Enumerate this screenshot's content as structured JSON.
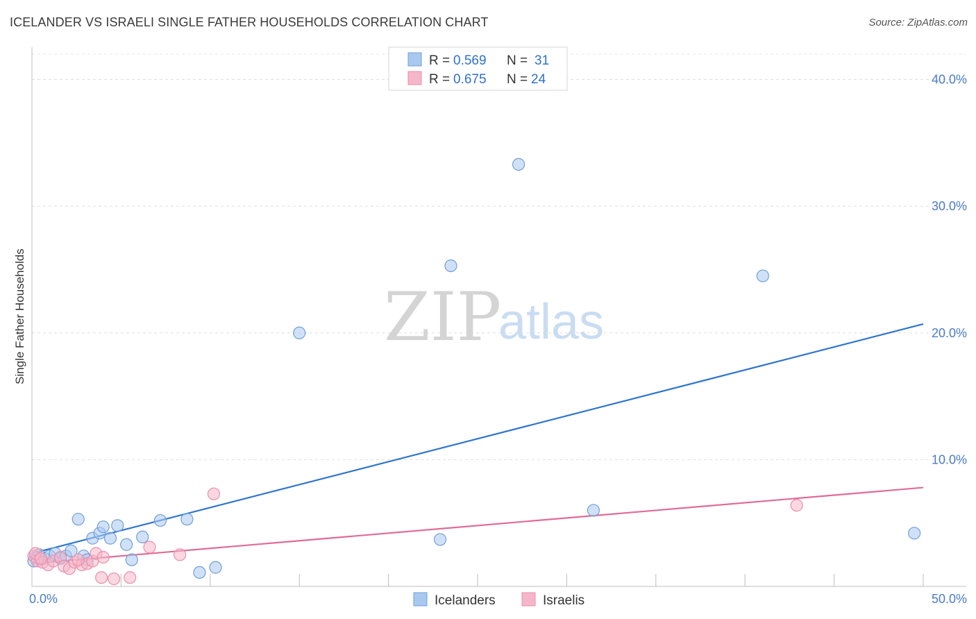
{
  "header": {
    "title": "ICELANDER VS ISRAELI SINGLE FATHER HOUSEHOLDS CORRELATION CHART",
    "source": "Source: ZipAtlas.com"
  },
  "watermark": {
    "zip": "ZIP",
    "atlas": "atlas"
  },
  "legend": {
    "items": [
      {
        "r_label": "R =",
        "r_value": "0.569",
        "n_label": "N =",
        "n_value": "31",
        "color": "#a9c8f0"
      },
      {
        "r_label": "R =",
        "r_value": "0.675",
        "n_label": "N =",
        "n_value": "24",
        "color": "#f6b6c9"
      }
    ]
  },
  "chart_data": {
    "type": "scatter",
    "title": "ICELANDER VS ISRAELI SINGLE FATHER HOUSEHOLDS CORRELATION CHART",
    "xlabel": "",
    "ylabel": "Single Father Households",
    "xlim": [
      0,
      50
    ],
    "ylim": [
      0,
      42
    ],
    "x_tick_labels": [
      "0.0%",
      "50.0%"
    ],
    "y_ticks": [
      10,
      20,
      30,
      40
    ],
    "y_tick_labels": [
      "10.0%",
      "20.0%",
      "30.0%",
      "40.0%"
    ],
    "series": [
      {
        "name": "Icelanders",
        "color": "#a9c8f0",
        "stroke": "#6f9fd8",
        "line_color": "#2f74d0",
        "trend": [
          [
            0,
            2.6
          ],
          [
            50,
            20.7
          ]
        ],
        "points": [
          [
            0.2,
            2.3
          ],
          [
            0.4,
            2.5
          ],
          [
            0.7,
            2.2
          ],
          [
            1.0,
            2.4
          ],
          [
            1.3,
            2.6
          ],
          [
            1.6,
            2.2
          ],
          [
            1.9,
            2.4
          ],
          [
            2.2,
            2.8
          ],
          [
            2.6,
            5.3
          ],
          [
            2.9,
            2.4
          ],
          [
            3.1,
            2.1
          ],
          [
            3.4,
            3.8
          ],
          [
            3.8,
            4.2
          ],
          [
            4.0,
            4.7
          ],
          [
            4.4,
            3.8
          ],
          [
            4.8,
            4.8
          ],
          [
            5.3,
            3.3
          ],
          [
            5.6,
            2.1
          ],
          [
            6.2,
            3.9
          ],
          [
            7.2,
            5.2
          ],
          [
            8.7,
            5.3
          ],
          [
            9.4,
            1.1
          ],
          [
            10.3,
            1.5
          ],
          [
            15.0,
            20.0
          ],
          [
            22.9,
            3.7
          ],
          [
            23.5,
            25.3
          ],
          [
            27.3,
            33.3
          ],
          [
            31.5,
            6.0
          ],
          [
            41.0,
            24.5
          ],
          [
            49.5,
            4.2
          ],
          [
            0.1,
            2.0
          ]
        ]
      },
      {
        "name": "Israelis",
        "color": "#f6b6c9",
        "stroke": "#e98fab",
        "line_color": "#e06b96",
        "trend": [
          [
            0,
            1.8
          ],
          [
            50,
            7.8
          ]
        ],
        "points": [
          [
            0.1,
            2.4
          ],
          [
            0.3,
            2.0
          ],
          [
            0.6,
            1.9
          ],
          [
            0.9,
            1.7
          ],
          [
            1.2,
            2.0
          ],
          [
            1.6,
            2.3
          ],
          [
            1.8,
            1.6
          ],
          [
            2.1,
            1.4
          ],
          [
            2.4,
            1.9
          ],
          [
            2.8,
            1.7
          ],
          [
            3.1,
            1.8
          ],
          [
            3.4,
            2.0
          ],
          [
            3.6,
            2.6
          ],
          [
            3.9,
            0.7
          ],
          [
            4.0,
            2.3
          ],
          [
            4.6,
            0.6
          ],
          [
            5.5,
            0.7
          ],
          [
            6.6,
            3.1
          ],
          [
            8.3,
            2.5
          ],
          [
            10.2,
            7.3
          ],
          [
            42.9,
            6.4
          ],
          [
            0.2,
            2.6
          ],
          [
            2.6,
            2.1
          ],
          [
            0.5,
            2.2
          ]
        ]
      }
    ]
  },
  "bottom_legend": [
    {
      "label": "Icelanders",
      "color": "#a9c8f0"
    },
    {
      "label": "Israelis",
      "color": "#f6b6c9"
    }
  ]
}
